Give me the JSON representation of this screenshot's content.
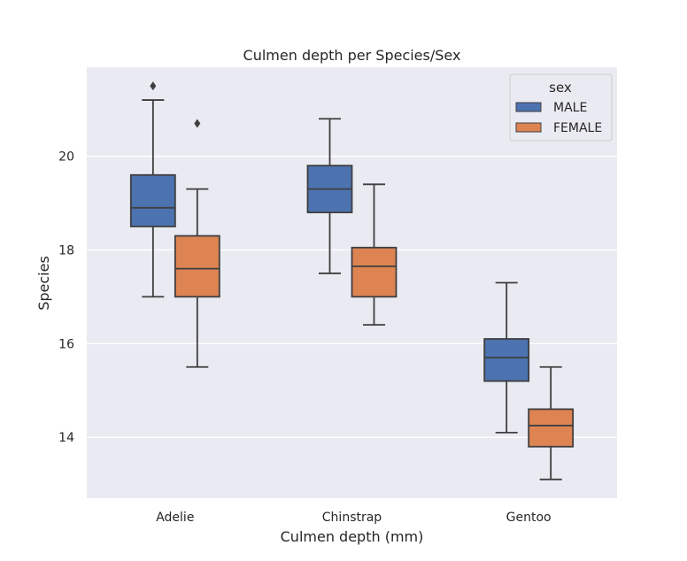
{
  "chart_data": {
    "type": "box",
    "title": "Culmen depth per Species/Sex",
    "xlabel": "Culmen depth (mm)",
    "ylabel": "Species",
    "categories": [
      "Adelie",
      "Chinstrap",
      "Gentoo"
    ],
    "ylim": [
      12.7,
      21.9
    ],
    "yticks": [
      14,
      16,
      18,
      20
    ],
    "grid": true,
    "legend": {
      "title": "sex",
      "position": "top-right"
    },
    "series": [
      {
        "name": "MALE",
        "color": "#4c72b0",
        "boxes": [
          {
            "whislo": 17.0,
            "q1": 18.5,
            "med": 18.9,
            "q3": 19.6,
            "whishi": 21.2,
            "fliers": [
              21.5
            ]
          },
          {
            "whislo": 17.5,
            "q1": 18.8,
            "med": 19.3,
            "q3": 19.8,
            "whishi": 20.8,
            "fliers": []
          },
          {
            "whislo": 14.1,
            "q1": 15.2,
            "med": 15.7,
            "q3": 16.1,
            "whishi": 17.3,
            "fliers": []
          }
        ]
      },
      {
        "name": "FEMALE",
        "color": "#dd8452",
        "boxes": [
          {
            "whislo": 15.5,
            "q1": 17.0,
            "med": 17.6,
            "q3": 18.3,
            "whishi": 19.3,
            "fliers": [
              20.7
            ]
          },
          {
            "whislo": 16.4,
            "q1": 17.0,
            "med": 17.65,
            "q3": 18.05,
            "whishi": 19.4,
            "fliers": []
          },
          {
            "whislo": 13.1,
            "q1": 13.8,
            "med": 14.25,
            "q3": 14.6,
            "whishi": 15.5,
            "fliers": []
          }
        ]
      }
    ]
  }
}
